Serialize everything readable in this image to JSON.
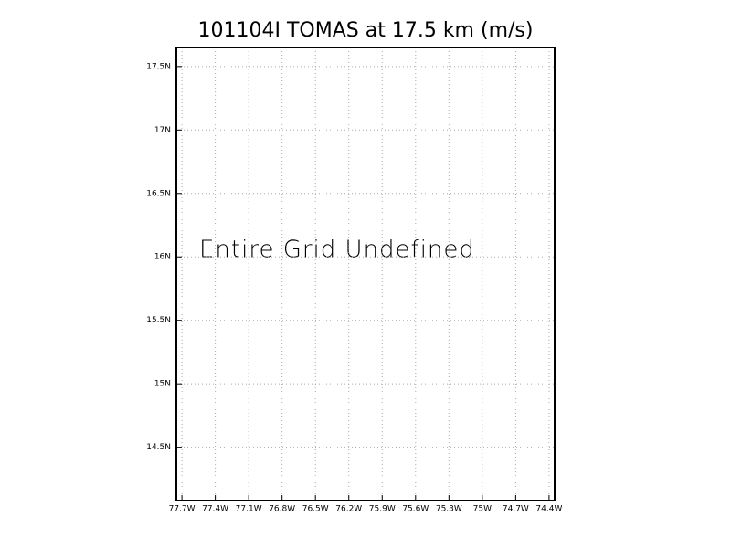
{
  "chart_data": {
    "type": "map",
    "title": "101104I TOMAS at 17.5 km (m/s)",
    "annotation": "Entire Grid Undefined",
    "xlim": [
      -77.75,
      -74.35
    ],
    "xticks": [
      {
        "value": -77.7,
        "label": "77.7W"
      },
      {
        "value": -77.4,
        "label": "77.4W"
      },
      {
        "value": -77.1,
        "label": "77.1W"
      },
      {
        "value": -76.8,
        "label": "76.8W"
      },
      {
        "value": -76.5,
        "label": "76.5W"
      },
      {
        "value": -76.2,
        "label": "76.2W"
      },
      {
        "value": -75.9,
        "label": "75.9W"
      },
      {
        "value": -75.6,
        "label": "75.6W"
      },
      {
        "value": -75.3,
        "label": "75.3W"
      },
      {
        "value": -75,
        "label": "75W"
      },
      {
        "value": -74.7,
        "label": "74.7W"
      },
      {
        "value": -74.4,
        "label": "74.4W"
      }
    ],
    "ylim": [
      14.08,
      17.65
    ],
    "yticks": [
      {
        "value": 14.5,
        "label": "14.5N"
      },
      {
        "value": 15,
        "label": "15N"
      },
      {
        "value": 15.5,
        "label": "15.5N"
      },
      {
        "value": 16,
        "label": "16N"
      },
      {
        "value": 16.5,
        "label": "16.5N"
      },
      {
        "value": 17,
        "label": "17N"
      },
      {
        "value": 17.5,
        "label": "17.5N"
      }
    ],
    "grid": true
  }
}
